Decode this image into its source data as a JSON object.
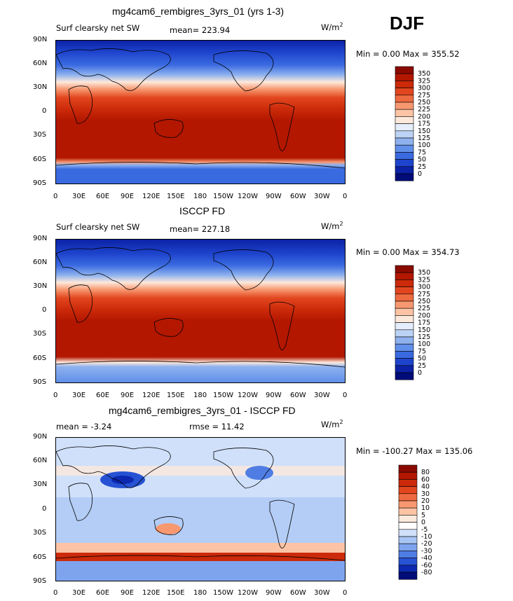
{
  "season": "DJF",
  "panels": [
    {
      "title": "mg4cam6_rembigres_3yrs_01 (yrs 1-3)",
      "left_label": "Surf clearsky net SW",
      "center_label": "mean= 223.94",
      "units": "W/m",
      "units_sup": "2",
      "minmax": "Min =    0.00 Max = 355.52",
      "kind": "field"
    },
    {
      "title": "ISCCP FD",
      "left_label": "Surf clearsky net SW",
      "center_label": "mean= 227.18",
      "units": "W/m",
      "units_sup": "2",
      "minmax": "Min =    0.00 Max = 354.73",
      "kind": "field"
    },
    {
      "title": "mg4cam6_rembigres_3yrs_01 - ISCCP FD",
      "left_label": "mean =   -3.24",
      "center_label": "rmse =  11.42",
      "units": "W/m",
      "units_sup": "2",
      "minmax": "Min = -100.27 Max = 135.06",
      "kind": "diff"
    }
  ],
  "lat_ticks": [
    "90N",
    "60N",
    "30N",
    "0",
    "30S",
    "60S",
    "90S"
  ],
  "lon_ticks": [
    "0",
    "30E",
    "60E",
    "90E",
    "120E",
    "150E",
    "180",
    "150W",
    "120W",
    "90W",
    "60W",
    "30W",
    "0"
  ],
  "colorbar_field": {
    "labels": [
      "350",
      "325",
      "300",
      "275",
      "250",
      "225",
      "200",
      "175",
      "150",
      "125",
      "100",
      "75",
      "50",
      "25",
      "0"
    ],
    "colors": [
      "#8b0a00",
      "#b31700",
      "#cc2a0a",
      "#e2461e",
      "#ee6a40",
      "#f79870",
      "#fcc4a5",
      "#fde9dc",
      "#e4eefc",
      "#bcd3f5",
      "#8fb2ee",
      "#6190ea",
      "#3a6ae0",
      "#1e44cd",
      "#0b22a6",
      "#000c78"
    ]
  },
  "colorbar_diff": {
    "labels": [
      "80",
      "60",
      "40",
      "30",
      "20",
      "10",
      "5",
      "0",
      "-5",
      "-10",
      "-20",
      "-30",
      "-40",
      "-60",
      "-80"
    ],
    "colors": [
      "#8b0a00",
      "#b31700",
      "#cc2a0a",
      "#e2461e",
      "#ee6a40",
      "#f79870",
      "#fcc4a5",
      "#fde9dc",
      "#ffffff",
      "#d0e0fa",
      "#a8c4f4",
      "#7ea4ee",
      "#4f7de4",
      "#2652d3",
      "#0b28ae",
      "#000c78"
    ]
  }
}
